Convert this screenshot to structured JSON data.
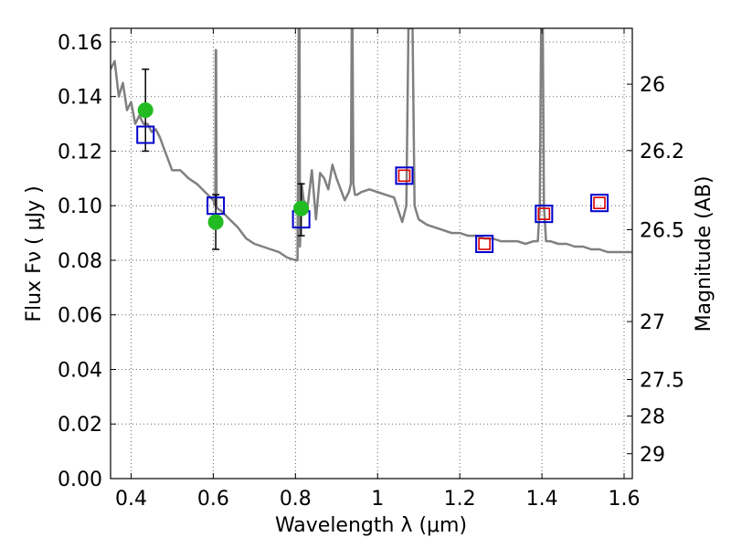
{
  "chart_data": {
    "type": "scatter",
    "title": "",
    "xlabel": "Wavelength  λ (μm)",
    "ylabel": "Flux  Fν  ( μJy )",
    "y2label": "Magnitude (AB)",
    "xlim": [
      0.35,
      1.62
    ],
    "ylim": [
      0.0,
      0.165
    ],
    "grid": true,
    "x_ticks": [
      {
        "value": 0.4,
        "label": "0.4"
      },
      {
        "value": 0.6,
        "label": "0.6"
      },
      {
        "value": 0.8,
        "label": "0.8"
      },
      {
        "value": 1.0,
        "label": "1"
      },
      {
        "value": 1.2,
        "label": "1.2"
      },
      {
        "value": 1.4,
        "label": "1.4"
      },
      {
        "value": 1.6,
        "label": "1.6"
      }
    ],
    "y_ticks": [
      {
        "value": 0.0,
        "label": "0.00"
      },
      {
        "value": 0.02,
        "label": "0.02"
      },
      {
        "value": 0.04,
        "label": "0.04"
      },
      {
        "value": 0.06,
        "label": "0.06"
      },
      {
        "value": 0.08,
        "label": "0.08"
      },
      {
        "value": 0.1,
        "label": "0.10"
      },
      {
        "value": 0.12,
        "label": "0.12"
      },
      {
        "value": 0.14,
        "label": "0.14"
      },
      {
        "value": 0.16,
        "label": "0.16"
      }
    ],
    "y2_ticks": [
      {
        "value": 26.0,
        "label": "26"
      },
      {
        "value": 26.2,
        "label": "26.2"
      },
      {
        "value": 26.5,
        "label": "26.5"
      },
      {
        "value": 27.0,
        "label": "27"
      },
      {
        "value": 27.5,
        "label": "27.5"
      },
      {
        "value": 28.0,
        "label": "28"
      },
      {
        "value": 29.0,
        "label": "29"
      }
    ],
    "colors": {
      "model": "#808080",
      "observed": "#22bb22",
      "errorbar": "#000000",
      "model_band_box": "#0000cc",
      "predicted_box": "#dd0000"
    },
    "series": [
      {
        "type": "line",
        "x": [
          0.35,
          0.36,
          0.37,
          0.38,
          0.39,
          0.4,
          0.41,
          0.42,
          0.43,
          0.44,
          0.45,
          0.46,
          0.47,
          0.48,
          0.5,
          0.52,
          0.54,
          0.56,
          0.58,
          0.6,
          0.605,
          0.606,
          0.607,
          0.608,
          0.61,
          0.62,
          0.64,
          0.66,
          0.68,
          0.7,
          0.72,
          0.74,
          0.76,
          0.78,
          0.8,
          0.805,
          0.808,
          0.809,
          0.81,
          0.811,
          0.812,
          0.815,
          0.82,
          0.83,
          0.84,
          0.85,
          0.86,
          0.87,
          0.88,
          0.89,
          0.9,
          0.92,
          0.93,
          0.935,
          0.937,
          0.939,
          0.941,
          0.945,
          0.95,
          0.96,
          0.98,
          1.0,
          1.02,
          1.04,
          1.06,
          1.07,
          1.075,
          1.08,
          1.085,
          1.09,
          1.1,
          1.12,
          1.14,
          1.16,
          1.18,
          1.2,
          1.22,
          1.24,
          1.26,
          1.28,
          1.3,
          1.32,
          1.34,
          1.36,
          1.38,
          1.39,
          1.395,
          1.398,
          1.4,
          1.402,
          1.405,
          1.41,
          1.42,
          1.44,
          1.46,
          1.48,
          1.5,
          1.52,
          1.54,
          1.56,
          1.58,
          1.6,
          1.62
        ],
        "y": [
          0.15,
          0.153,
          0.14,
          0.145,
          0.135,
          0.138,
          0.13,
          0.133,
          0.13,
          0.13,
          0.127,
          0.128,
          0.125,
          0.121,
          0.113,
          0.113,
          0.11,
          0.108,
          0.105,
          0.102,
          0.1,
          0.157,
          0.157,
          0.1,
          0.099,
          0.098,
          0.095,
          0.092,
          0.088,
          0.086,
          0.085,
          0.084,
          0.083,
          0.081,
          0.08,
          0.08,
          0.165,
          0.165,
          0.165,
          0.085,
          0.09,
          0.108,
          0.102,
          0.1,
          0.113,
          0.095,
          0.112,
          0.11,
          0.106,
          0.115,
          0.11,
          0.102,
          0.105,
          0.108,
          0.165,
          0.165,
          0.108,
          0.104,
          0.104,
          0.105,
          0.106,
          0.105,
          0.104,
          0.103,
          0.094,
          0.1,
          0.165,
          0.165,
          0.165,
          0.1,
          0.095,
          0.093,
          0.092,
          0.091,
          0.09,
          0.09,
          0.089,
          0.089,
          0.088,
          0.088,
          0.087,
          0.087,
          0.087,
          0.086,
          0.087,
          0.087,
          0.1,
          0.165,
          0.165,
          0.165,
          0.1,
          0.087,
          0.087,
          0.086,
          0.086,
          0.085,
          0.085,
          0.084,
          0.084,
          0.083,
          0.083,
          0.083,
          0.083
        ]
      },
      {
        "type": "scatter",
        "marker": "circle",
        "points": [
          {
            "x": 0.435,
            "y": 0.135,
            "yerr_low": 0.12,
            "yerr_high": 0.15
          },
          {
            "x": 0.606,
            "y": 0.094,
            "yerr_low": 0.084,
            "yerr_high": 0.104
          },
          {
            "x": 0.814,
            "y": 0.099,
            "yerr_low": 0.089,
            "yerr_high": 0.108
          }
        ]
      },
      {
        "type": "scatter",
        "marker": "square-open",
        "x": [
          0.435,
          0.606,
          0.814,
          1.065,
          1.26,
          1.405,
          1.54
        ],
        "y": [
          0.126,
          0.1,
          0.095,
          0.111,
          0.086,
          0.097,
          0.101
        ]
      },
      {
        "type": "scatter",
        "marker": "square-open",
        "x": [
          1.065,
          1.26,
          1.405,
          1.54
        ],
        "y": [
          0.111,
          0.086,
          0.097,
          0.101
        ]
      }
    ]
  }
}
